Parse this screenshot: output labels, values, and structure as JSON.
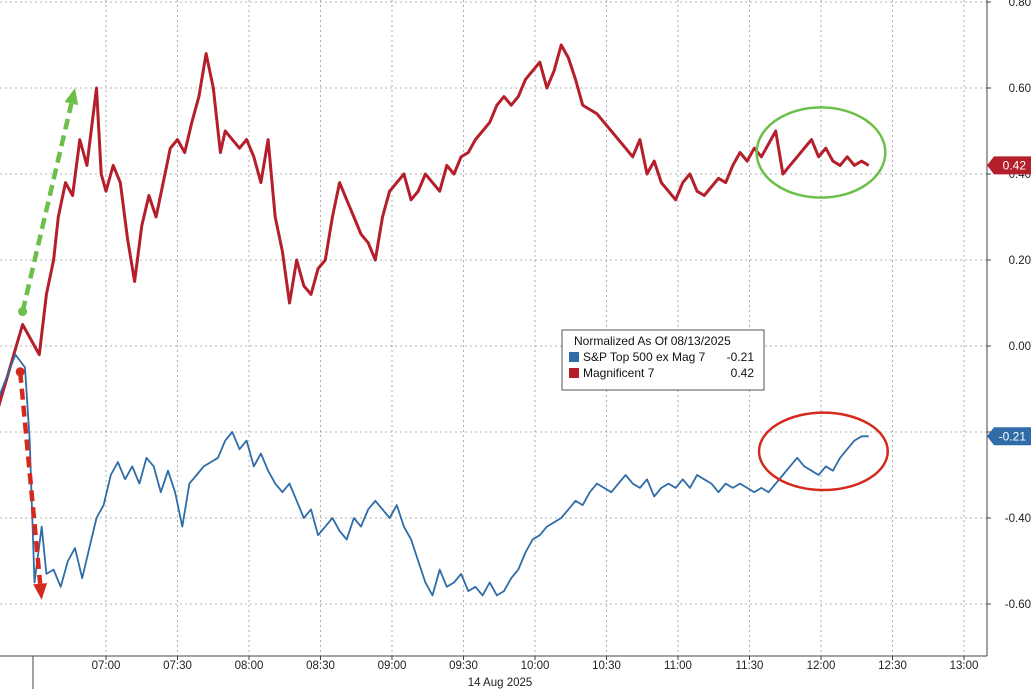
{
  "chart_data": {
    "type": "line",
    "title": "",
    "date_label": "14 Aug 2025",
    "xlabel": "",
    "ylabel": "",
    "x_ticks": [
      "07:00",
      "07:30",
      "08:00",
      "08:30",
      "09:00",
      "09:30",
      "10:00",
      "10:30",
      "11:00",
      "11:30",
      "12:00",
      "12:30",
      "13:00"
    ],
    "y_ticks": [
      "-0.60",
      "-0.40",
      "-0.20",
      "0.00",
      "0.20",
      "0.40",
      "0.60",
      "0.80"
    ],
    "ylim": [
      -0.72,
      0.8
    ],
    "xlim": [
      "06:30",
      "13:05"
    ],
    "grid": true,
    "legend": {
      "title": "Normalized As Of 08/13/2025",
      "position": "center-right",
      "entries": [
        {
          "name": "S&P Top 500 ex Mag 7",
          "value": "-0.21",
          "color": "#2f6ca8"
        },
        {
          "name": "Magnificent 7",
          "value": "0.42",
          "color": "#b51f2c"
        }
      ]
    },
    "series": [
      {
        "name": "Magnificent 7",
        "color": "#b51f2c",
        "last_label": "0.42",
        "x": [
          "06:15",
          "06:25",
          "06:32",
          "06:35",
          "06:38",
          "06:40",
          "06:43",
          "06:46",
          "06:49",
          "06:52",
          "06:56",
          "06:58",
          "07:00",
          "07:03",
          "07:06",
          "07:09",
          "07:12",
          "07:15",
          "07:18",
          "07:21",
          "07:24",
          "07:27",
          "07:30",
          "07:33",
          "07:36",
          "07:39",
          "07:42",
          "07:45",
          "07:48",
          "07:50",
          "07:53",
          "07:56",
          "07:59",
          "08:02",
          "08:05",
          "08:08",
          "08:11",
          "08:14",
          "08:17",
          "08:20",
          "08:23",
          "08:26",
          "08:29",
          "08:32",
          "08:35",
          "08:38",
          "08:41",
          "08:44",
          "08:47",
          "08:50",
          "08:53",
          "08:56",
          "08:59",
          "09:02",
          "09:05",
          "09:08",
          "09:11",
          "09:14",
          "09:17",
          "09:20",
          "09:23",
          "09:26",
          "09:29",
          "09:32",
          "09:35",
          "09:38",
          "09:41",
          "09:44",
          "09:47",
          "09:50",
          "09:53",
          "09:56",
          "09:59",
          "10:02",
          "10:05",
          "10:08",
          "10:11",
          "10:14",
          "10:17",
          "10:20",
          "10:23",
          "10:26",
          "10:29",
          "10:32",
          "10:35",
          "10:38",
          "10:41",
          "10:44",
          "10:47",
          "10:50",
          "10:53",
          "10:56",
          "10:59",
          "11:02",
          "11:05",
          "11:08",
          "11:11",
          "11:14",
          "11:17",
          "11:20",
          "11:23",
          "11:26",
          "11:29",
          "11:32",
          "11:35",
          "11:38",
          "11:41",
          "11:44",
          "11:47",
          "11:50",
          "11:53",
          "11:56",
          "11:59",
          "12:02",
          "12:05",
          "12:08",
          "12:11",
          "12:14",
          "12:17",
          "12:20"
        ],
        "values": [
          -0.14,
          0.05,
          -0.02,
          0.12,
          0.2,
          0.3,
          0.38,
          0.35,
          0.48,
          0.42,
          0.6,
          0.4,
          0.36,
          0.42,
          0.38,
          0.25,
          0.15,
          0.28,
          0.35,
          0.3,
          0.38,
          0.46,
          0.48,
          0.45,
          0.52,
          0.58,
          0.68,
          0.6,
          0.45,
          0.5,
          0.48,
          0.46,
          0.48,
          0.44,
          0.38,
          0.48,
          0.3,
          0.22,
          0.1,
          0.2,
          0.14,
          0.12,
          0.18,
          0.2,
          0.3,
          0.38,
          0.34,
          0.3,
          0.26,
          0.24,
          0.2,
          0.3,
          0.36,
          0.38,
          0.4,
          0.34,
          0.36,
          0.4,
          0.38,
          0.36,
          0.42,
          0.4,
          0.44,
          0.45,
          0.48,
          0.5,
          0.52,
          0.56,
          0.58,
          0.56,
          0.58,
          0.62,
          0.64,
          0.66,
          0.6,
          0.64,
          0.7,
          0.67,
          0.62,
          0.56,
          0.55,
          0.54,
          0.52,
          0.5,
          0.48,
          0.46,
          0.44,
          0.48,
          0.4,
          0.43,
          0.38,
          0.36,
          0.34,
          0.38,
          0.4,
          0.36,
          0.35,
          0.37,
          0.39,
          0.38,
          0.42,
          0.45,
          0.43,
          0.46,
          0.44,
          0.47,
          0.5,
          0.4,
          0.42,
          0.44,
          0.46,
          0.48,
          0.44,
          0.46,
          0.43,
          0.42,
          0.44,
          0.42,
          0.43,
          0.42
        ]
      },
      {
        "name": "S&P Top 500 ex Mag 7",
        "color": "#2f6ca8",
        "last_label": "-0.21",
        "x": [
          "06:15",
          "06:22",
          "06:26",
          "06:28",
          "06:30",
          "06:33",
          "06:35",
          "06:38",
          "06:41",
          "06:44",
          "06:47",
          "06:50",
          "06:53",
          "06:56",
          "06:59",
          "07:02",
          "07:05",
          "07:08",
          "07:11",
          "07:14",
          "07:17",
          "07:20",
          "07:23",
          "07:26",
          "07:29",
          "07:32",
          "07:35",
          "07:38",
          "07:41",
          "07:44",
          "07:47",
          "07:50",
          "07:53",
          "07:56",
          "07:59",
          "08:02",
          "08:05",
          "08:08",
          "08:11",
          "08:14",
          "08:17",
          "08:20",
          "08:23",
          "08:26",
          "08:29",
          "08:32",
          "08:35",
          "08:38",
          "08:41",
          "08:44",
          "08:47",
          "08:50",
          "08:53",
          "08:56",
          "08:59",
          "09:02",
          "09:05",
          "09:08",
          "09:11",
          "09:14",
          "09:17",
          "09:20",
          "09:23",
          "09:26",
          "09:29",
          "09:32",
          "09:35",
          "09:38",
          "09:41",
          "09:44",
          "09:47",
          "09:50",
          "09:53",
          "09:56",
          "09:59",
          "10:02",
          "10:05",
          "10:08",
          "10:11",
          "10:14",
          "10:17",
          "10:20",
          "10:23",
          "10:26",
          "10:29",
          "10:32",
          "10:35",
          "10:38",
          "10:41",
          "10:44",
          "10:47",
          "10:50",
          "10:53",
          "10:56",
          "10:59",
          "11:02",
          "11:05",
          "11:08",
          "11:11",
          "11:14",
          "11:17",
          "11:20",
          "11:23",
          "11:26",
          "11:29",
          "11:32",
          "11:35",
          "11:38",
          "11:41",
          "11:44",
          "11:47",
          "11:50",
          "11:53",
          "11:56",
          "11:59",
          "12:02",
          "12:05",
          "12:08",
          "12:11",
          "12:14",
          "12:17",
          "12:20"
        ],
        "values": [
          -0.12,
          -0.02,
          -0.05,
          -0.22,
          -0.55,
          -0.42,
          -0.53,
          -0.52,
          -0.56,
          -0.5,
          -0.47,
          -0.54,
          -0.47,
          -0.4,
          -0.37,
          -0.3,
          -0.27,
          -0.31,
          -0.28,
          -0.32,
          -0.26,
          -0.28,
          -0.34,
          -0.29,
          -0.34,
          -0.42,
          -0.32,
          -0.3,
          -0.28,
          -0.27,
          -0.26,
          -0.22,
          -0.2,
          -0.24,
          -0.22,
          -0.28,
          -0.25,
          -0.29,
          -0.32,
          -0.34,
          -0.32,
          -0.36,
          -0.4,
          -0.38,
          -0.44,
          -0.42,
          -0.4,
          -0.43,
          -0.45,
          -0.4,
          -0.42,
          -0.38,
          -0.36,
          -0.38,
          -0.4,
          -0.37,
          -0.42,
          -0.45,
          -0.5,
          -0.55,
          -0.58,
          -0.52,
          -0.56,
          -0.55,
          -0.53,
          -0.57,
          -0.56,
          -0.58,
          -0.55,
          -0.58,
          -0.57,
          -0.54,
          -0.52,
          -0.48,
          -0.45,
          -0.44,
          -0.42,
          -0.41,
          -0.4,
          -0.38,
          -0.36,
          -0.37,
          -0.34,
          -0.32,
          -0.33,
          -0.34,
          -0.32,
          -0.3,
          -0.32,
          -0.33,
          -0.31,
          -0.35,
          -0.33,
          -0.32,
          -0.33,
          -0.31,
          -0.33,
          -0.3,
          -0.31,
          -0.32,
          -0.34,
          -0.32,
          -0.33,
          -0.32,
          -0.33,
          -0.34,
          -0.33,
          -0.34,
          -0.32,
          -0.3,
          -0.28,
          -0.26,
          -0.28,
          -0.29,
          -0.3,
          -0.28,
          -0.29,
          -0.26,
          -0.24,
          -0.22,
          -0.21,
          -0.21
        ]
      }
    ],
    "annotations": [
      {
        "type": "arrow",
        "color": "#6cc04a",
        "style": "dashed",
        "from": {
          "x": "06:25",
          "y": 0.08
        },
        "to": {
          "x": "06:47",
          "y": 0.6
        }
      },
      {
        "type": "arrow",
        "color": "#d42a1e",
        "style": "dashed",
        "from": {
          "x": "06:24",
          "y": -0.06
        },
        "to": {
          "x": "06:33",
          "y": -0.59
        }
      },
      {
        "type": "ellipse",
        "color": "#6cc04a",
        "center": {
          "x": "12:00",
          "y": 0.45
        },
        "rx_minutes": 27,
        "ry_value": 0.105
      },
      {
        "type": "ellipse",
        "color": "#d42a1e",
        "center": {
          "x": "12:01",
          "y": -0.245
        },
        "rx_minutes": 27,
        "ry_value": 0.09
      }
    ]
  }
}
